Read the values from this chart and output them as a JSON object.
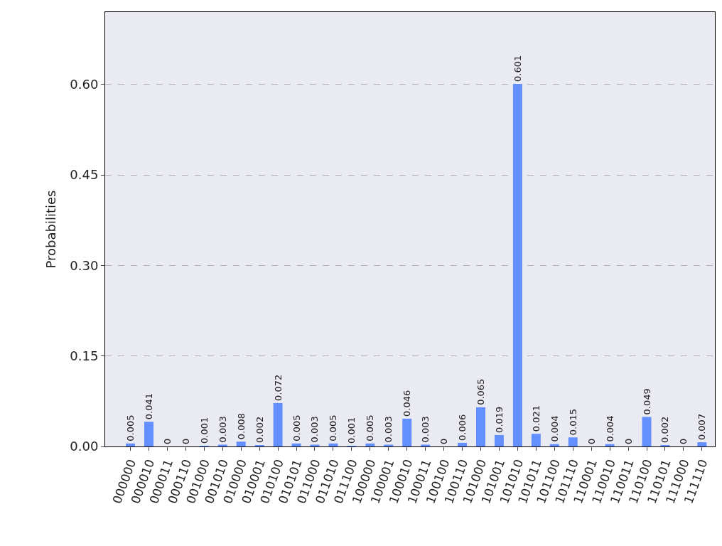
{
  "chart_data": {
    "type": "bar",
    "ylabel": "Probabilities",
    "categories": [
      "000000",
      "000010",
      "000011",
      "000110",
      "001000",
      "001010",
      "010000",
      "010001",
      "010100",
      "010101",
      "011000",
      "011010",
      "011100",
      "100000",
      "100001",
      "100010",
      "100011",
      "100100",
      "100110",
      "101000",
      "101001",
      "101010",
      "101011",
      "101100",
      "101110",
      "110001",
      "110010",
      "110011",
      "110100",
      "110101",
      "111000",
      "111110"
    ],
    "values": [
      0.005,
      0.041,
      0,
      0,
      0.001,
      0.003,
      0.008,
      0.002,
      0.072,
      0.005,
      0.003,
      0.005,
      0.001,
      0.005,
      0.003,
      0.046,
      0.003,
      0,
      0.006,
      0.065,
      0.019,
      0.601,
      0.021,
      0.004,
      0.015,
      0,
      0.004,
      0,
      0.049,
      0.002,
      0,
      0.007
    ],
    "color": "#648fff",
    "ylim": [
      0,
      0.72
    ],
    "yticks": [
      {
        "value": 0,
        "label": "0.00"
      },
      {
        "value": 0.15,
        "label": "0.15"
      },
      {
        "value": 0.3,
        "label": "0.30"
      },
      {
        "value": 0.45,
        "label": "0.45"
      },
      {
        "value": 0.6,
        "label": "0.60"
      }
    ],
    "grid": "y",
    "data_labels": true
  }
}
